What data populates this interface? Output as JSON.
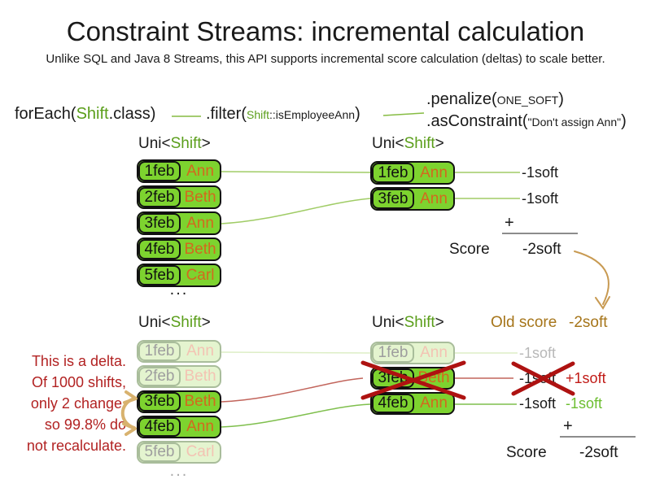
{
  "title": "Constraint Streams: incremental calculation",
  "subtitle": "Unlike SQL and Java 8 Streams, this API supports incremental score calculation (deltas) to scale better.",
  "code": {
    "foreach_pre": "forEach(",
    "foreach_class": "Shift",
    "foreach_post": ".class)",
    "filter_pre": ".filter(",
    "filter_arg_class": "Shift",
    "filter_arg_method": "::isEmployeeAnn",
    "filter_post": ")",
    "penalize_pre": ".penalize(",
    "penalize_arg": "ONE_SOFT",
    "penalize_post": ")",
    "asconstraint_pre": ".asConstraint(",
    "asconstraint_arg": "\"Don't assign Ann\"",
    "asconstraint_post": ")"
  },
  "type_label": {
    "pre": "Uni<",
    "class_name": "Shift",
    "post": ">"
  },
  "top": {
    "source_rows": [
      {
        "date": "1feb",
        "name": "Ann"
      },
      {
        "date": "2feb",
        "name": "Beth"
      },
      {
        "date": "3feb",
        "name": "Ann"
      },
      {
        "date": "4feb",
        "name": "Beth"
      },
      {
        "date": "5feb",
        "name": "Carl"
      }
    ],
    "more": "...",
    "filtered_rows": [
      {
        "date": "1feb",
        "name": "Ann"
      },
      {
        "date": "3feb",
        "name": "Ann"
      }
    ],
    "scores": [
      "-1soft",
      "-1soft"
    ],
    "score": {
      "plus": "+",
      "label": "Score",
      "value": "-2soft"
    }
  },
  "bottom": {
    "note_lines": [
      "This is a delta.",
      "Of 1000 shifts,",
      "only 2 change,",
      "so 99.8% do",
      "not recalculate."
    ],
    "source_rows": [
      {
        "date": "1feb",
        "name": "Ann",
        "faded": true
      },
      {
        "date": "2feb",
        "name": "Beth",
        "faded": true
      },
      {
        "date": "3feb",
        "name": "Beth",
        "faded": false
      },
      {
        "date": "4feb",
        "name": "Ann",
        "faded": false
      },
      {
        "date": "5feb",
        "name": "Carl",
        "faded": true
      }
    ],
    "more": "...",
    "filtered_rows": [
      {
        "date": "1feb",
        "name": "Ann",
        "faded": true,
        "crossed": false
      },
      {
        "date": "3feb",
        "name": "Beth",
        "faded": false,
        "crossed": true
      },
      {
        "date": "4feb",
        "name": "Ann",
        "faded": false,
        "crossed": false
      }
    ],
    "old_score_label": "Old score",
    "old_score_value": "-2soft",
    "annotations": [
      {
        "old": "-1soft",
        "old_style": "faded",
        "delta": "",
        "delta_style": ""
      },
      {
        "old": "-1soft",
        "old_style": "crossed",
        "delta": "+1soft",
        "delta_style": "red"
      },
      {
        "old": "-1soft",
        "old_style": "normal",
        "delta": "-1soft",
        "delta_style": "green"
      }
    ],
    "score": {
      "plus": "+",
      "label": "Score",
      "value": "-2soft"
    }
  },
  "colors": {
    "box_green": "#7dd32f",
    "class_green": "#5a9e1a",
    "name_orange": "#d2691e",
    "connector_green": "#a0cc66",
    "connector_red": "#c2655c",
    "cross_red": "#ae1211",
    "note_red": "#b22222",
    "old_score_brown": "#a6751a",
    "arrow_tan": "#c89a52",
    "faded_gray": "#b8b8b8"
  }
}
